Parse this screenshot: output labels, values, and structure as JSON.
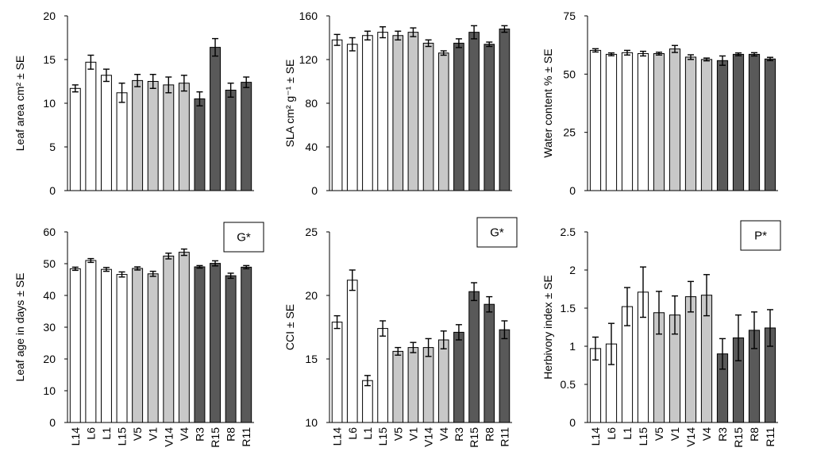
{
  "chart_data": [
    {
      "type": "bar",
      "ylabel": "Leaf area cm² ± SE",
      "ylim": [
        0,
        20
      ],
      "yticks": [
        0,
        5,
        10,
        15,
        20
      ],
      "categories": [
        "L14",
        "L6",
        "L1",
        "L15",
        "V5",
        "V1",
        "V14",
        "V4",
        "R3",
        "R15",
        "R8",
        "R11"
      ],
      "groups": [
        "white",
        "white",
        "white",
        "white",
        "gray",
        "gray",
        "gray",
        "gray",
        "dark",
        "dark",
        "dark",
        "dark"
      ],
      "values": [
        11.7,
        14.7,
        13.2,
        11.2,
        12.6,
        12.5,
        12.1,
        12.3,
        10.5,
        16.4,
        11.5,
        12.4
      ],
      "errors": [
        0.4,
        0.8,
        0.7,
        1.1,
        0.7,
        0.8,
        0.9,
        0.9,
        0.8,
        1.0,
        0.8,
        0.6
      ],
      "annotation": ""
    },
    {
      "type": "bar",
      "ylabel": "SLA cm² g⁻¹ ± SE",
      "ylim": [
        0,
        160
      ],
      "yticks": [
        0,
        40,
        80,
        120,
        160
      ],
      "categories": [
        "L14",
        "L6",
        "L1",
        "L15",
        "V5",
        "V1",
        "V14",
        "V4",
        "R3",
        "R15",
        "R8",
        "R11"
      ],
      "groups": [
        "white",
        "white",
        "white",
        "white",
        "gray",
        "gray",
        "gray",
        "gray",
        "dark",
        "dark",
        "dark",
        "dark"
      ],
      "values": [
        138,
        134,
        142,
        145,
        142,
        145,
        135,
        126,
        135,
        145,
        134,
        148
      ],
      "errors": [
        5,
        6,
        4,
        5,
        4,
        4,
        3,
        2,
        4,
        6,
        2,
        3
      ],
      "annotation": ""
    },
    {
      "type": "bar",
      "ylabel": "Water content % ± SE",
      "ylim": [
        0,
        75
      ],
      "yticks": [
        0,
        25,
        50,
        75
      ],
      "categories": [
        "L14",
        "L6",
        "L1",
        "L15",
        "V5",
        "V1",
        "V14",
        "V4",
        "R3",
        "R15",
        "R8",
        "R11"
      ],
      "groups": [
        "white",
        "white",
        "white",
        "white",
        "gray",
        "gray",
        "gray",
        "gray",
        "dark",
        "dark",
        "dark",
        "dark"
      ],
      "values": [
        60.2,
        58.5,
        59.2,
        58.8,
        58.8,
        60.8,
        57.3,
        56.3,
        55.8,
        58.5,
        58.5,
        56.5
      ],
      "errors": [
        0.7,
        0.6,
        1.0,
        1.0,
        0.6,
        1.5,
        1.0,
        0.6,
        2.0,
        0.6,
        0.7,
        0.7
      ],
      "annotation": ""
    },
    {
      "type": "bar",
      "ylabel": "Leaf age in days ± SE",
      "ylim": [
        0,
        60
      ],
      "yticks": [
        0,
        10,
        20,
        30,
        40,
        50,
        60
      ],
      "categories": [
        "L14",
        "L6",
        "L1",
        "L15",
        "V5",
        "V1",
        "V14",
        "V4",
        "R3",
        "R15",
        "R8",
        "R11"
      ],
      "groups": [
        "white",
        "white",
        "white",
        "white",
        "gray",
        "gray",
        "gray",
        "gray",
        "dark",
        "dark",
        "dark",
        "dark"
      ],
      "values": [
        48.4,
        51.0,
        48.2,
        46.6,
        48.5,
        46.8,
        52.4,
        53.6,
        49.0,
        50.1,
        46.2,
        48.9
      ],
      "errors": [
        0.5,
        0.6,
        0.6,
        0.8,
        0.5,
        0.8,
        0.9,
        1.0,
        0.4,
        0.8,
        0.8,
        0.5
      ],
      "annotation": "G*"
    },
    {
      "type": "bar",
      "ylabel": "CCI ± SE",
      "ylim": [
        10,
        25
      ],
      "yticks": [
        10,
        15,
        20,
        25
      ],
      "categories": [
        "L14",
        "L6",
        "L1",
        "L15",
        "V5",
        "V1",
        "V14",
        "V4",
        "R3",
        "R15",
        "R8",
        "R11"
      ],
      "groups": [
        "white",
        "white",
        "white",
        "white",
        "gray",
        "gray",
        "gray",
        "gray",
        "dark",
        "dark",
        "dark",
        "dark"
      ],
      "values": [
        17.9,
        21.2,
        13.3,
        17.4,
        15.6,
        15.9,
        15.9,
        16.5,
        17.1,
        20.3,
        19.3,
        17.3
      ],
      "errors": [
        0.5,
        0.8,
        0.4,
        0.6,
        0.3,
        0.4,
        0.7,
        0.7,
        0.6,
        0.7,
        0.6,
        0.7
      ],
      "annotation": "G*"
    },
    {
      "type": "bar",
      "ylabel": "Herbivory index ± SE",
      "ylim": [
        0,
        2.5
      ],
      "yticks": [
        0,
        0.5,
        1,
        1.5,
        2,
        2.5
      ],
      "categories": [
        "L14",
        "L6",
        "L1",
        "L15",
        "V5",
        "V1",
        "V14",
        "V4",
        "R3",
        "R15",
        "R8",
        "R11"
      ],
      "groups": [
        "white",
        "white",
        "white",
        "white",
        "gray",
        "gray",
        "gray",
        "gray",
        "dark",
        "dark",
        "dark",
        "dark"
      ],
      "values": [
        0.97,
        1.03,
        1.52,
        1.71,
        1.44,
        1.41,
        1.65,
        1.67,
        0.9,
        1.11,
        1.21,
        1.24
      ],
      "errors": [
        0.15,
        0.27,
        0.25,
        0.33,
        0.28,
        0.25,
        0.2,
        0.27,
        0.2,
        0.3,
        0.24,
        0.24
      ],
      "annotation": "P*"
    }
  ],
  "colors": {
    "white": "#ffffff",
    "gray": "#c8c8c8",
    "dark": "#595959",
    "ink": "#000000"
  }
}
